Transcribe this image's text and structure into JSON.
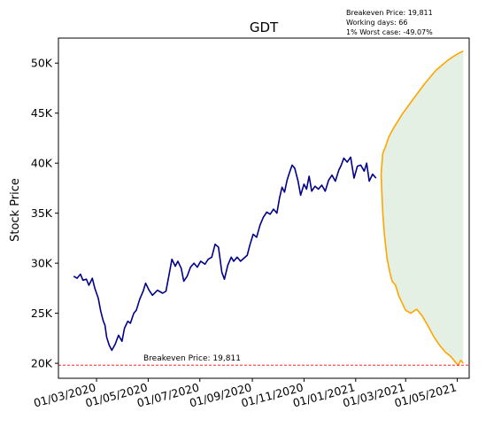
{
  "chart_data": {
    "type": "line",
    "title": "GDT",
    "ylabel": "Stock Price",
    "xlabel": "",
    "ylim": [
      18500,
      52500
    ],
    "xlim": [
      "2020-01-16",
      "2021-05-15"
    ],
    "y_ticks": [
      20000,
      25000,
      30000,
      35000,
      40000,
      45000,
      50000
    ],
    "y_tick_labels": [
      "20K",
      "25K",
      "30K",
      "35K",
      "40K",
      "45K",
      "50K"
    ],
    "x_ticks": [
      "2020-03-01",
      "2020-05-01",
      "2020-07-01",
      "2020-09-01",
      "2020-11-01",
      "2021-01-01",
      "2021-03-01",
      "2021-05-01"
    ],
    "x_tick_labels": [
      "01/03/2020",
      "01/05/2020",
      "01/07/2020",
      "01/09/2020",
      "01/11/2020",
      "01/01/2021",
      "01/03/2021",
      "01/05/2021"
    ],
    "grid": false,
    "info_lines": [
      "Breakeven Price: 19,811",
      "Working days: 66",
      "1% Worst case: -49.07%"
    ],
    "breakeven": {
      "value": 19811,
      "label": "Breakeven Price: 19,811",
      "color": "#ff0000"
    },
    "colors": {
      "history": "#00008b",
      "projection": "#ffa500",
      "band_fill": "#e3f0e3"
    },
    "series": [
      {
        "role": "history",
        "points": [
          [
            "2020-02-03",
            28700
          ],
          [
            "2020-02-07",
            28500
          ],
          [
            "2020-02-11",
            28900
          ],
          [
            "2020-02-14",
            28300
          ],
          [
            "2020-02-18",
            28400
          ],
          [
            "2020-02-21",
            27800
          ],
          [
            "2020-02-25",
            28500
          ],
          [
            "2020-02-28",
            27500
          ],
          [
            "2020-03-03",
            26500
          ],
          [
            "2020-03-06",
            25200
          ],
          [
            "2020-03-09",
            24200
          ],
          [
            "2020-03-11",
            23800
          ],
          [
            "2020-03-13",
            22600
          ],
          [
            "2020-03-16",
            21800
          ],
          [
            "2020-03-19",
            21300
          ],
          [
            "2020-03-23",
            21900
          ],
          [
            "2020-03-27",
            22800
          ],
          [
            "2020-03-31",
            22200
          ],
          [
            "2020-04-03",
            23500
          ],
          [
            "2020-04-07",
            24200
          ],
          [
            "2020-04-10",
            24000
          ],
          [
            "2020-04-14",
            25000
          ],
          [
            "2020-04-17",
            25300
          ],
          [
            "2020-04-21",
            26400
          ],
          [
            "2020-04-25",
            27200
          ],
          [
            "2020-04-28",
            28000
          ],
          [
            "2020-05-02",
            27300
          ],
          [
            "2020-05-06",
            26800
          ],
          [
            "2020-05-12",
            27300
          ],
          [
            "2020-05-18",
            27000
          ],
          [
            "2020-05-22",
            27200
          ],
          [
            "2020-05-26",
            29000
          ],
          [
            "2020-05-29",
            30400
          ],
          [
            "2020-06-02",
            29700
          ],
          [
            "2020-06-05",
            30200
          ],
          [
            "2020-06-09",
            29500
          ],
          [
            "2020-06-12",
            28200
          ],
          [
            "2020-06-16",
            28700
          ],
          [
            "2020-06-20",
            29600
          ],
          [
            "2020-06-24",
            30000
          ],
          [
            "2020-06-28",
            29600
          ],
          [
            "2020-07-02",
            30200
          ],
          [
            "2020-07-07",
            29900
          ],
          [
            "2020-07-11",
            30400
          ],
          [
            "2020-07-15",
            30600
          ],
          [
            "2020-07-19",
            31900
          ],
          [
            "2020-07-23",
            31600
          ],
          [
            "2020-07-27",
            29100
          ],
          [
            "2020-07-30",
            28400
          ],
          [
            "2020-08-03",
            29800
          ],
          [
            "2020-08-07",
            30600
          ],
          [
            "2020-08-10",
            30200
          ],
          [
            "2020-08-14",
            30600
          ],
          [
            "2020-08-18",
            30200
          ],
          [
            "2020-08-22",
            30500
          ],
          [
            "2020-08-26",
            30800
          ],
          [
            "2020-08-29",
            31800
          ],
          [
            "2020-09-02",
            32900
          ],
          [
            "2020-09-06",
            32600
          ],
          [
            "2020-09-10",
            33800
          ],
          [
            "2020-09-14",
            34600
          ],
          [
            "2020-09-18",
            35100
          ],
          [
            "2020-09-22",
            34900
          ],
          [
            "2020-09-26",
            35400
          ],
          [
            "2020-09-30",
            35000
          ],
          [
            "2020-10-03",
            36500
          ],
          [
            "2020-10-06",
            37600
          ],
          [
            "2020-10-09",
            37100
          ],
          [
            "2020-10-12",
            38300
          ],
          [
            "2020-10-15",
            39100
          ],
          [
            "2020-10-18",
            39800
          ],
          [
            "2020-10-21",
            39500
          ],
          [
            "2020-10-25",
            38200
          ],
          [
            "2020-10-28",
            36800
          ],
          [
            "2020-11-01",
            37900
          ],
          [
            "2020-11-04",
            37400
          ],
          [
            "2020-11-07",
            38700
          ],
          [
            "2020-11-10",
            37200
          ],
          [
            "2020-11-14",
            37700
          ],
          [
            "2020-11-18",
            37400
          ],
          [
            "2020-11-22",
            37800
          ],
          [
            "2020-11-26",
            37200
          ],
          [
            "2020-11-30",
            38300
          ],
          [
            "2020-12-04",
            38800
          ],
          [
            "2020-12-08",
            38200
          ],
          [
            "2020-12-12",
            39300
          ],
          [
            "2020-12-15",
            39800
          ],
          [
            "2020-12-18",
            40500
          ],
          [
            "2020-12-22",
            40100
          ],
          [
            "2020-12-26",
            40600
          ],
          [
            "2020-12-30",
            38500
          ],
          [
            "2021-01-03",
            39700
          ],
          [
            "2021-01-07",
            39800
          ],
          [
            "2021-01-11",
            39200
          ],
          [
            "2021-01-14",
            40000
          ],
          [
            "2021-01-17",
            38200
          ],
          [
            "2021-01-21",
            38900
          ],
          [
            "2021-01-25",
            38500
          ]
        ]
      },
      {
        "role": "projection-upper",
        "points": [
          [
            "2021-01-31",
            38900
          ],
          [
            "2021-02-02",
            41000
          ],
          [
            "2021-02-05",
            41600
          ],
          [
            "2021-02-09",
            42600
          ],
          [
            "2021-02-14",
            43400
          ],
          [
            "2021-02-19",
            44100
          ],
          [
            "2021-02-25",
            44900
          ],
          [
            "2021-03-03",
            45600
          ],
          [
            "2021-03-09",
            46300
          ],
          [
            "2021-03-16",
            47100
          ],
          [
            "2021-03-23",
            47900
          ],
          [
            "2021-03-30",
            48600
          ],
          [
            "2021-04-06",
            49300
          ],
          [
            "2021-04-13",
            49800
          ],
          [
            "2021-04-20",
            50300
          ],
          [
            "2021-04-27",
            50700
          ],
          [
            "2021-05-03",
            51000
          ],
          [
            "2021-05-08",
            51200
          ]
        ]
      },
      {
        "role": "projection-lower",
        "points": [
          [
            "2021-01-31",
            38900
          ],
          [
            "2021-02-02",
            35000
          ],
          [
            "2021-02-04",
            32800
          ],
          [
            "2021-02-07",
            30500
          ],
          [
            "2021-02-10",
            29200
          ],
          [
            "2021-02-13",
            28200
          ],
          [
            "2021-02-17",
            27800
          ],
          [
            "2021-02-21",
            26700
          ],
          [
            "2021-02-25",
            26000
          ],
          [
            "2021-03-01",
            25300
          ],
          [
            "2021-03-07",
            25000
          ],
          [
            "2021-03-14",
            25400
          ],
          [
            "2021-03-20",
            24800
          ],
          [
            "2021-03-27",
            23800
          ],
          [
            "2021-04-03",
            22700
          ],
          [
            "2021-04-10",
            21800
          ],
          [
            "2021-04-17",
            21100
          ],
          [
            "2021-04-23",
            20700
          ],
          [
            "2021-04-28",
            20200
          ],
          [
            "2021-05-02",
            19800
          ],
          [
            "2021-05-05",
            20300
          ],
          [
            "2021-05-08",
            20000
          ]
        ]
      }
    ]
  }
}
